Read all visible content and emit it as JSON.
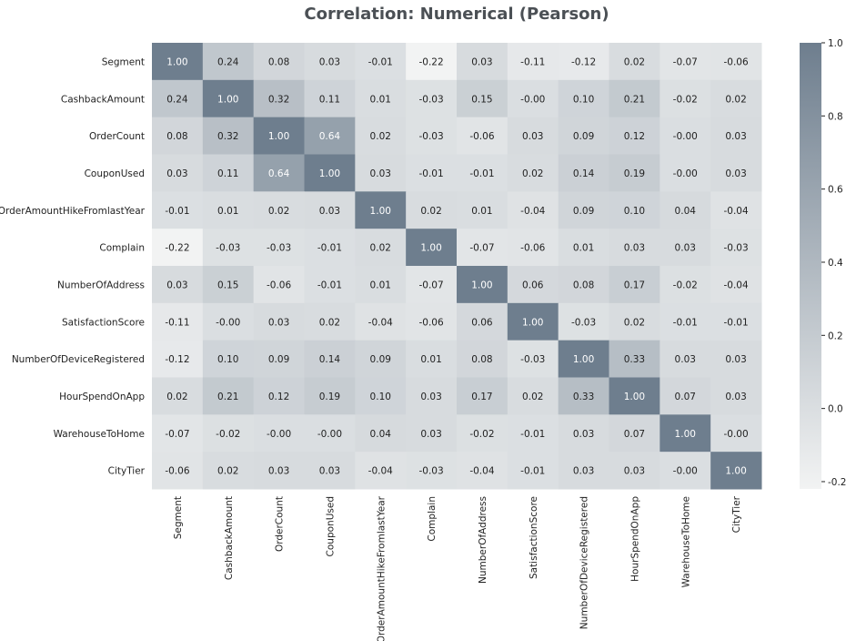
{
  "chart_data": {
    "type": "heatmap",
    "title": "Correlation: Numerical (Pearson)",
    "variables": [
      "Segment",
      "CashbackAmount",
      "OrderCount",
      "CouponUsed",
      "OrderAmountHikeFromlastYear",
      "Complain",
      "NumberOfAddress",
      "SatisfactionScore",
      "NumberOfDeviceRegistered",
      "HourSpendOnApp",
      "WarehouseToHome",
      "CityTier"
    ],
    "matrix": [
      [
        "1.00",
        "0.24",
        "0.08",
        "0.03",
        "-0.01",
        "-0.22",
        "0.03",
        "-0.11",
        "-0.12",
        "0.02",
        "-0.07",
        "-0.06"
      ],
      [
        "0.24",
        "1.00",
        "0.32",
        "0.11",
        "0.01",
        "-0.03",
        "0.15",
        "-0.00",
        "0.10",
        "0.21",
        "-0.02",
        "0.02"
      ],
      [
        "0.08",
        "0.32",
        "1.00",
        "0.64",
        "0.02",
        "-0.03",
        "-0.06",
        "0.03",
        "0.09",
        "0.12",
        "-0.00",
        "0.03"
      ],
      [
        "0.03",
        "0.11",
        "0.64",
        "1.00",
        "0.03",
        "-0.01",
        "-0.01",
        "0.02",
        "0.14",
        "0.19",
        "-0.00",
        "0.03"
      ],
      [
        "-0.01",
        "0.01",
        "0.02",
        "0.03",
        "1.00",
        "0.02",
        "0.01",
        "-0.04",
        "0.09",
        "0.10",
        "0.04",
        "-0.04"
      ],
      [
        "-0.22",
        "-0.03",
        "-0.03",
        "-0.01",
        "0.02",
        "1.00",
        "-0.07",
        "-0.06",
        "0.01",
        "0.03",
        "0.03",
        "-0.03"
      ],
      [
        "0.03",
        "0.15",
        "-0.06",
        "-0.01",
        "0.01",
        "-0.07",
        "1.00",
        "0.06",
        "0.08",
        "0.17",
        "-0.02",
        "-0.04"
      ],
      [
        "-0.11",
        "-0.00",
        "0.03",
        "0.02",
        "-0.04",
        "-0.06",
        "0.06",
        "1.00",
        "-0.03",
        "0.02",
        "-0.01",
        "-0.01"
      ],
      [
        "-0.12",
        "0.10",
        "0.09",
        "0.14",
        "0.09",
        "0.01",
        "0.08",
        "-0.03",
        "1.00",
        "0.33",
        "0.03",
        "0.03"
      ],
      [
        "0.02",
        "0.21",
        "0.12",
        "0.19",
        "0.10",
        "0.03",
        "0.17",
        "0.02",
        "0.33",
        "1.00",
        "0.07",
        "0.03"
      ],
      [
        "-0.07",
        "-0.02",
        "-0.00",
        "-0.00",
        "0.04",
        "0.03",
        "-0.02",
        "-0.01",
        "0.03",
        "0.07",
        "1.00",
        "-0.00"
      ],
      [
        "-0.06",
        "0.02",
        "0.03",
        "0.03",
        "-0.04",
        "-0.03",
        "-0.04",
        "-0.01",
        "0.03",
        "0.03",
        "-0.00",
        "1.00"
      ]
    ],
    "colorbar": {
      "min": -0.22,
      "max": 1.0,
      "ticks": [
        "1.0",
        "0.8",
        "0.6",
        "0.4",
        "0.2",
        "0.0",
        "-0.2"
      ],
      "color_low": "#f2f3f3",
      "color_high": "#6e7e8e"
    },
    "colors": {
      "title": "#4b5055",
      "text_dark": "#222222",
      "text_light": "#ffffff"
    }
  }
}
